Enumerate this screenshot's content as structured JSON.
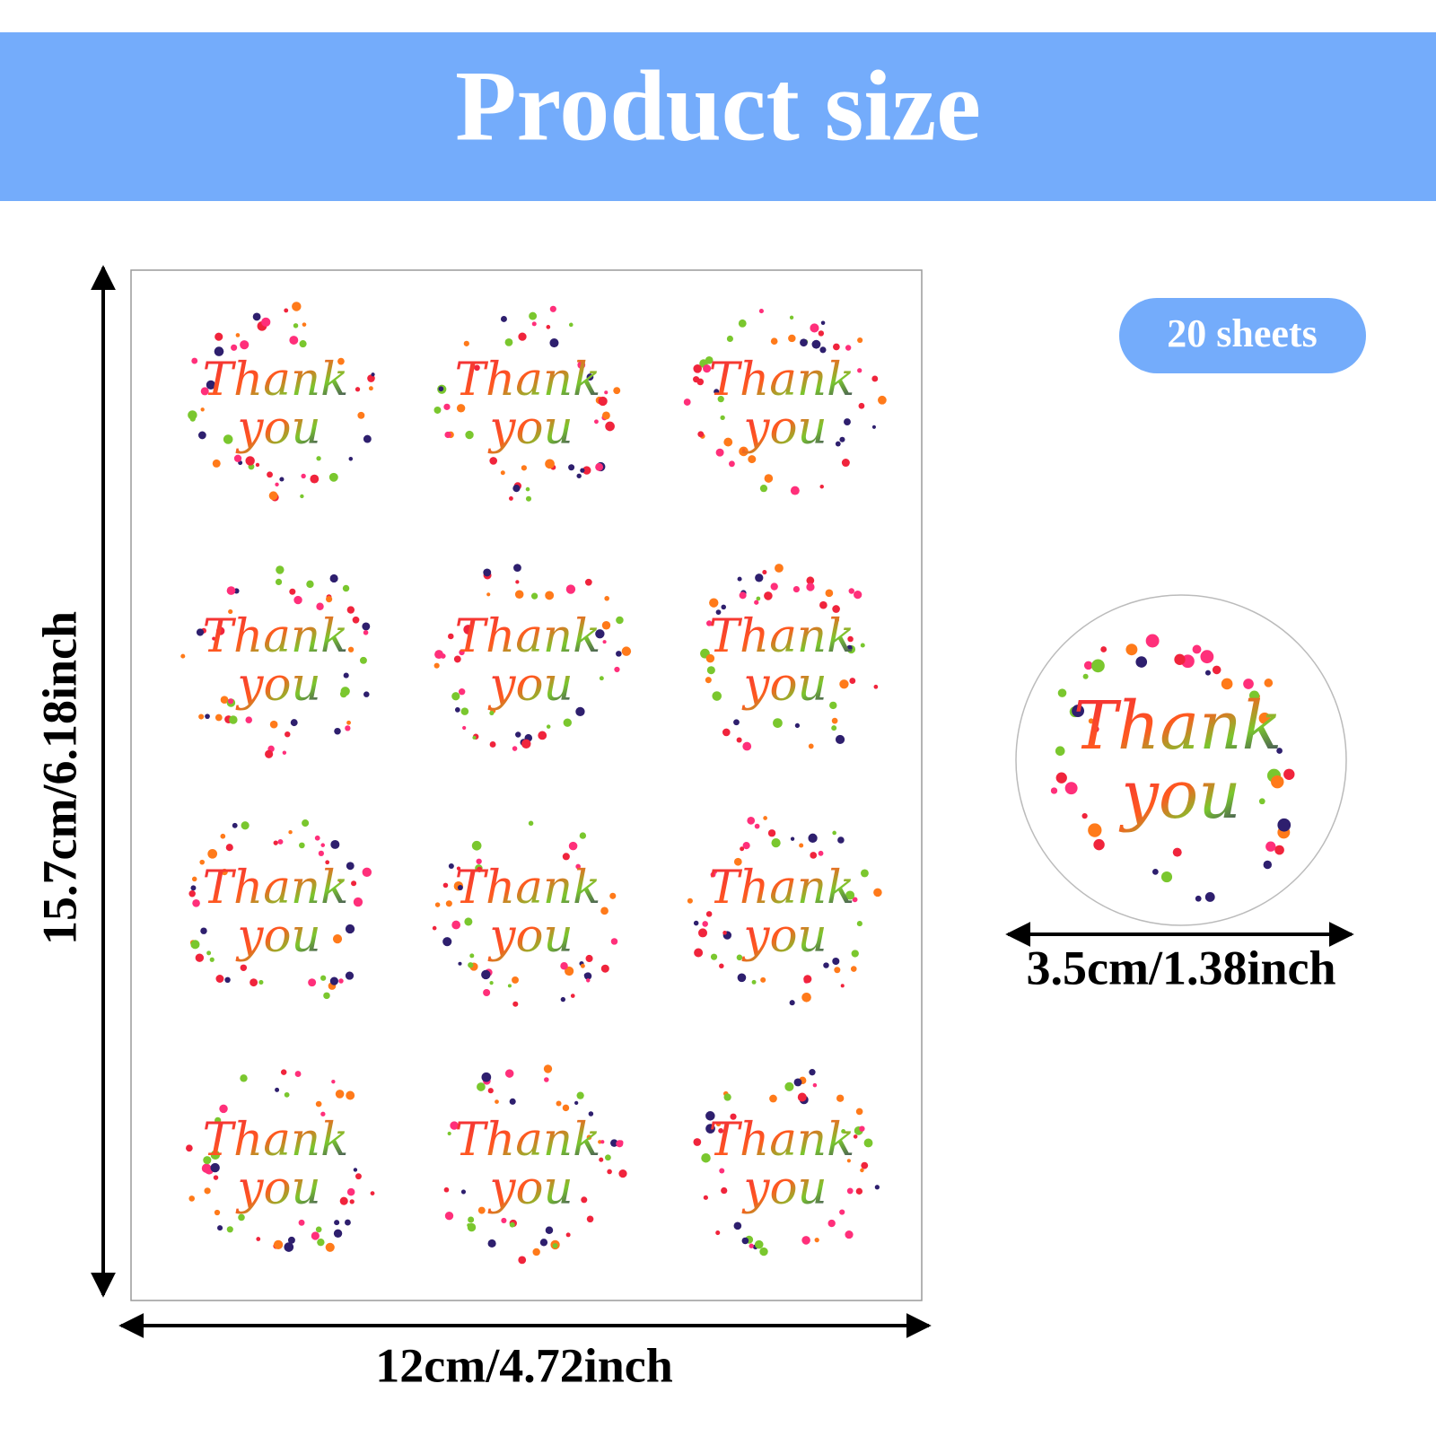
{
  "header": {
    "title": "Product size"
  },
  "badge": {
    "text": "20 sheets"
  },
  "sticker": {
    "lines": [
      "Thank",
      "you"
    ]
  },
  "dimensions": {
    "sheet_height": "15.7cm/6.18inch",
    "sheet_width": "12cm/4.72inch",
    "sticker_diameter": "3.5cm/1.38inch"
  }
}
